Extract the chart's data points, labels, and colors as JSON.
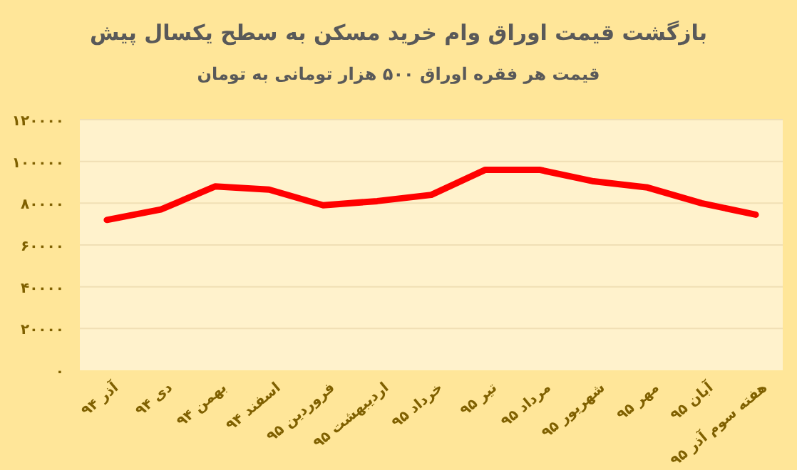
{
  "chart_data": {
    "type": "line",
    "title": "بازگشت قیمت اوراق وام خرید مسکن به سطح یکسال پیش",
    "subtitle": "قیمت هر فقره اوراق ۵۰۰ هزار تومانی به تومان",
    "categories": [
      "آذر ۹۴",
      "دی ۹۴",
      "بهمن ۹۴",
      "اسفند ۹۴",
      "فروردین ۹۵",
      "اردیبهشت ۹۵",
      "خرداد ۹۵",
      "تیر ۹۵",
      "مرداد ۹۵",
      "شهریور ۹۵",
      "مهر ۹۵",
      "آبان ۹۵",
      "هفته سوم آذر ۹۵"
    ],
    "values": [
      72000,
      77000,
      88000,
      86500,
      79000,
      81000,
      84000,
      96000,
      96000,
      90500,
      87500,
      80000,
      74500
    ],
    "color": "#ff0000",
    "ylim": [
      0,
      120000
    ],
    "yticks": [
      {
        "value": 0,
        "label": "۰"
      },
      {
        "value": 20000,
        "label": "۲۰۰۰۰"
      },
      {
        "value": 40000,
        "label": "۴۰۰۰۰"
      },
      {
        "value": 60000,
        "label": "۶۰۰۰۰"
      },
      {
        "value": 80000,
        "label": "۸۰۰۰۰"
      },
      {
        "value": 100000,
        "label": "۱۰۰۰۰۰"
      },
      {
        "value": 120000,
        "label": "۱۲۰۰۰۰"
      }
    ],
    "grid": "y",
    "marker": "none",
    "line_style": "solid"
  }
}
